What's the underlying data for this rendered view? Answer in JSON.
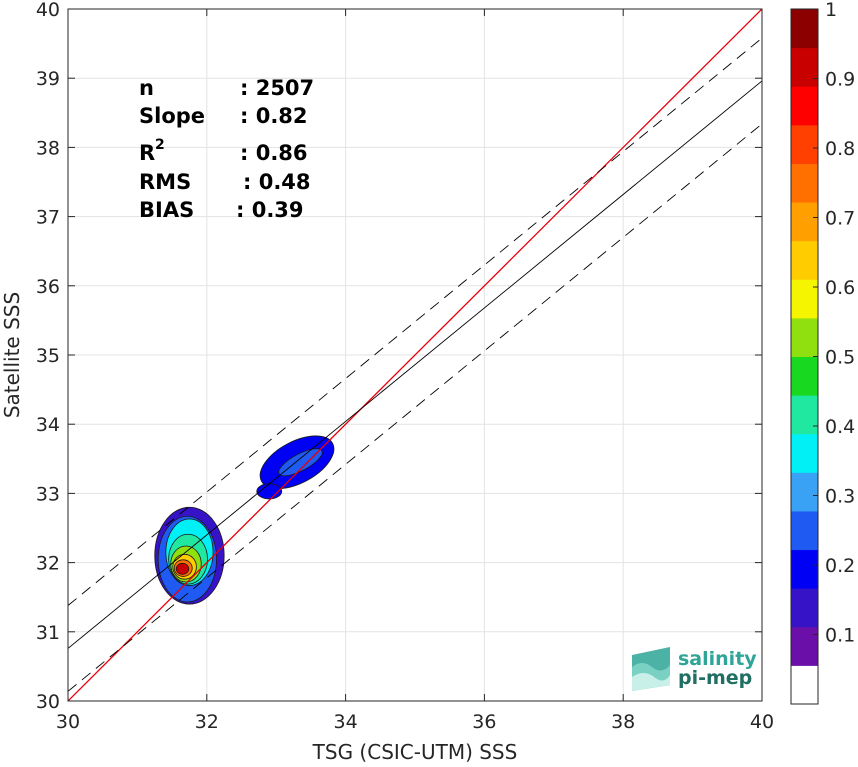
{
  "chart_data": {
    "type": "heatmap",
    "title": "",
    "xlabel": "TSG (CSIC-UTM) SSS",
    "ylabel": "Satellite SSS",
    "xlim": [
      30,
      40
    ],
    "ylim": [
      30,
      40
    ],
    "xticks": [
      "30",
      "32",
      "34",
      "36",
      "38",
      "40"
    ],
    "yticks": [
      "30",
      "31",
      "32",
      "33",
      "34",
      "35",
      "36",
      "37",
      "38",
      "39",
      "40"
    ],
    "grid": true,
    "lines": [
      {
        "name": "identity",
        "color": "#e8000b",
        "style": "solid",
        "x": [
          30,
          40
        ],
        "y": [
          30,
          40
        ]
      },
      {
        "name": "regression",
        "color": "#000000",
        "style": "solid",
        "x": [
          30,
          40
        ],
        "y": [
          30.76,
          38.96
        ]
      },
      {
        "name": "upper bound",
        "color": "#000000",
        "style": "dashed",
        "x": [
          30,
          40
        ],
        "y": [
          31.38,
          39.58
        ]
      },
      {
        "name": "lower bound",
        "color": "#000000",
        "style": "dashed",
        "x": [
          30,
          40
        ],
        "y": [
          30.14,
          38.34
        ]
      }
    ],
    "stats": [
      {
        "label": "n",
        "value": ": 2507"
      },
      {
        "label": "Slope",
        "value": ": 0.82"
      },
      {
        "label": "R",
        "sup": "2",
        "value": ": 0.86"
      },
      {
        "label": "RMS",
        "value": ": 0.48"
      },
      {
        "label": "BIAS",
        "value": ": 0.39"
      }
    ],
    "density_blobs": [
      {
        "x": 31.75,
        "y": 32.1,
        "rx": 0.5,
        "ry": 0.7,
        "value": 0.1
      },
      {
        "x": 31.72,
        "y": 32.05,
        "rx": 0.42,
        "ry": 0.62,
        "value": 0.2
      },
      {
        "x": 31.75,
        "y": 32.15,
        "rx": 0.34,
        "ry": 0.48,
        "value": 0.3
      },
      {
        "x": 31.73,
        "y": 32.05,
        "rx": 0.28,
        "ry": 0.36,
        "value": 0.4
      },
      {
        "x": 31.7,
        "y": 31.98,
        "rx": 0.22,
        "ry": 0.26,
        "value": 0.5
      },
      {
        "x": 31.68,
        "y": 31.94,
        "rx": 0.17,
        "ry": 0.18,
        "value": 0.6
      },
      {
        "x": 31.66,
        "y": 31.92,
        "rx": 0.13,
        "ry": 0.12,
        "value": 0.75
      },
      {
        "x": 31.65,
        "y": 31.91,
        "rx": 0.09,
        "ry": 0.08,
        "value": 0.9
      },
      {
        "x": 33.3,
        "y": 33.45,
        "rx": 0.58,
        "ry": 0.3,
        "value": 0.15,
        "rot": -28
      },
      {
        "x": 33.35,
        "y": 33.45,
        "rx": 0.35,
        "ry": 0.12,
        "value": 0.22,
        "rot": -28
      },
      {
        "x": 32.9,
        "y": 33.03,
        "rx": 0.18,
        "ry": 0.11,
        "value": 0.15
      }
    ],
    "colorbar": {
      "range": [
        0,
        1
      ],
      "ticks": [
        "0.1",
        "0.2",
        "0.3",
        "0.4",
        "0.5",
        "0.6",
        "0.7",
        "0.8",
        "0.9",
        "1"
      ],
      "colors": [
        "#ffffff",
        "#6a0fa8",
        "#3713c8",
        "#0000f5",
        "#1f5bf2",
        "#3aa2f5",
        "#00f0f5",
        "#20e8a0",
        "#18d820",
        "#90e010",
        "#f5f500",
        "#ffcc00",
        "#ffa000",
        "#ff7000",
        "#ff4000",
        "#ff0000",
        "#c80000",
        "#8c0000"
      ]
    }
  },
  "logo": {
    "line1": "salinity",
    "line2": "pi-mep"
  }
}
